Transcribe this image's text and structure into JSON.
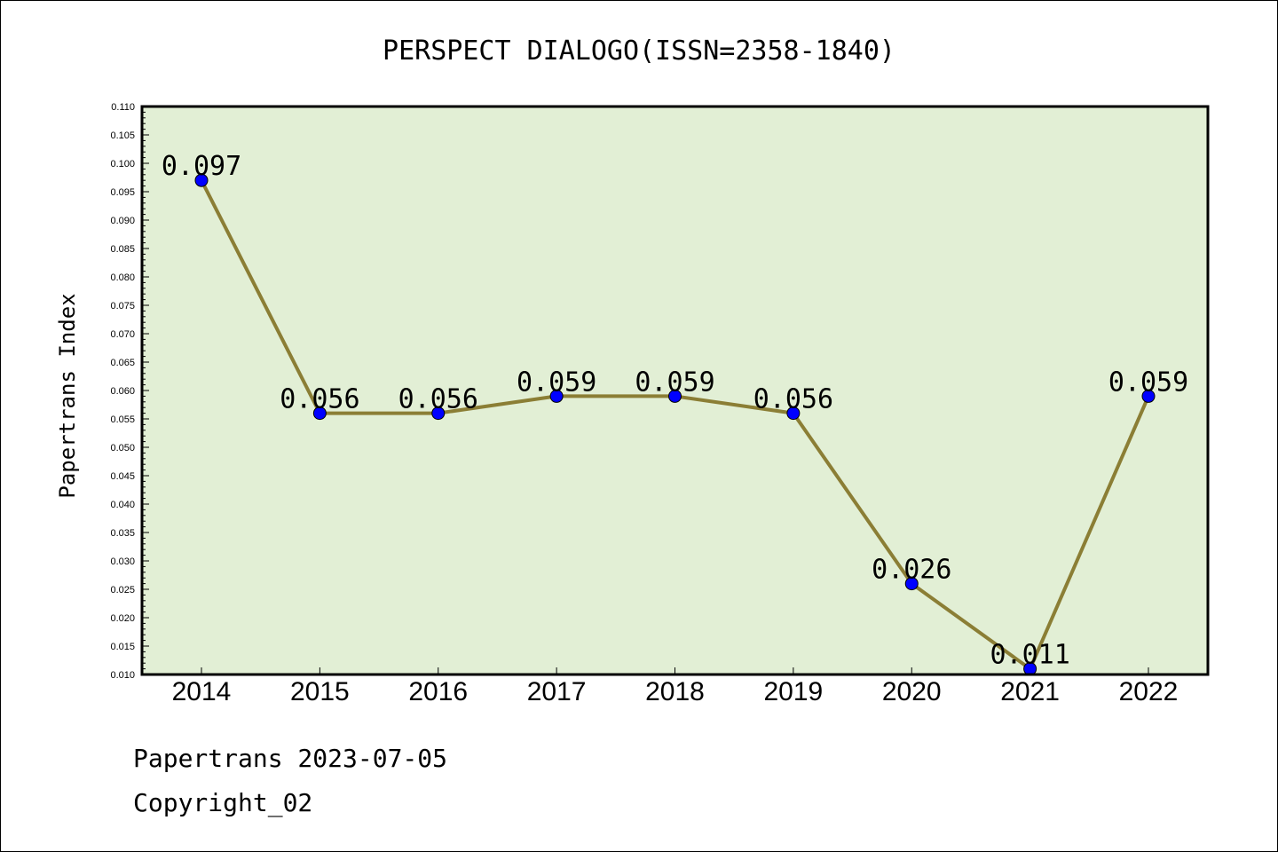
{
  "footer": {
    "line1": "Papertrans 2023-07-05",
    "line2": "Copyright_02"
  },
  "colors": {
    "plot_background": "#e2efd5",
    "line": "#8b7e35",
    "marker": "#0000ff"
  },
  "chart_data": {
    "type": "line",
    "title": "PERSPECT DIALOGO(ISSN=2358-1840)",
    "xlabel": "",
    "ylabel": "Papertrans Index",
    "categories": [
      "2014",
      "2015",
      "2016",
      "2017",
      "2018",
      "2019",
      "2020",
      "2021",
      "2022"
    ],
    "series": [
      {
        "values": [
          0.097,
          0.056,
          0.056,
          0.059,
          0.059,
          0.056,
          0.026,
          0.011,
          0.059
        ],
        "labels": [
          "0.097",
          "0.056",
          "0.056",
          "0.059",
          "0.059",
          "0.056",
          "0.026",
          "0.011",
          "0.059"
        ]
      }
    ],
    "ylim": [
      0.01,
      0.11
    ],
    "yticks": [
      "0.010",
      "0.015",
      "0.020",
      "0.025",
      "0.030",
      "0.035",
      "0.040",
      "0.045",
      "0.050",
      "0.055",
      "0.060",
      "0.065",
      "0.070",
      "0.075",
      "0.080",
      "0.085",
      "0.090",
      "0.095",
      "0.100",
      "0.105",
      "0.110"
    ],
    "grid": false,
    "legend": "none"
  }
}
